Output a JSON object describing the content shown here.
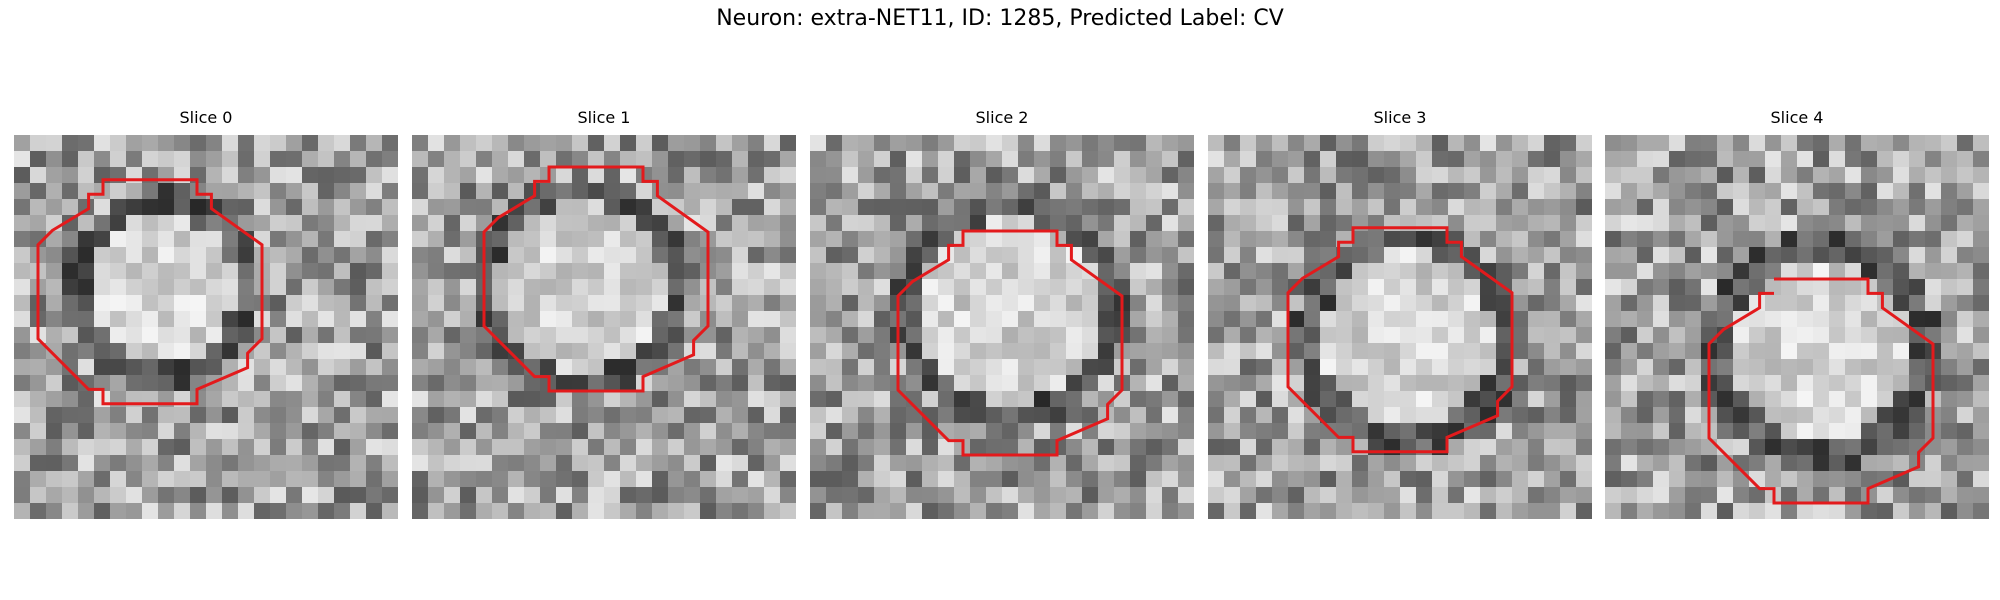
{
  "figure": {
    "title": "Neuron: extra-NET11, ID: 1285, Predicted Label: CV",
    "contour_color": "#e31a1c",
    "colormap": "gray",
    "slices": [
      {
        "title": "Slice 0",
        "seed": 11,
        "ring_color": "dark ring with bright center"
      },
      {
        "title": "Slice 1",
        "seed": 23,
        "ring_color": "dark ring with bright center"
      },
      {
        "title": "Slice 2",
        "seed": 37,
        "ring_color": "dark ring with bright center"
      },
      {
        "title": "Slice 3",
        "seed": 51,
        "ring_color": "dark ring with bright center"
      },
      {
        "title": "Slice 4",
        "seed": 67,
        "ring_color": "dark ring with bright center"
      }
    ]
  }
}
